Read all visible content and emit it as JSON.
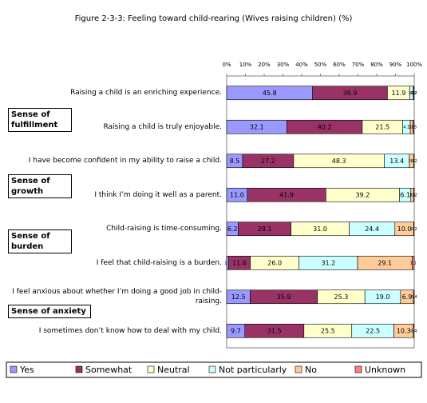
{
  "chart_data": {
    "type": "stacked-bar-horizontal",
    "title": "Figure 2-3-3:  Feeling toward child-rearing (Wives raising children) (%)",
    "categories": [
      "Raising a child is an enriching experience.",
      "Raising a child is truly enjoyable.",
      "I have become confident in my ability to raise a child.",
      "I think I’m doing it well as a parent.",
      "Child-raising is time-consuming.",
      "I feel that child-raising is a burden.",
      "I feel anxious about whether I’m doing a good job in child-raising.",
      "I sometimes don’t know how to deal with my child."
    ],
    "groups": [
      "Sense of fulfillment",
      "Sense of growth",
      "Sense of burden",
      "Sense of anxiety"
    ],
    "series": [
      {
        "name": "Yes",
        "color": "#9999ff",
        "values": [
          45.8,
          32.1,
          8.5,
          11.0,
          6.2,
          1.0,
          12.5,
          9.7
        ],
        "value_labels": [
          "45.8",
          "32.1",
          "8.5",
          "11.0",
          "6.2",
          "1.0",
          "12.5",
          "9.7"
        ]
      },
      {
        "name": "Somewhat",
        "color": "#993366",
        "values": [
          39.9,
          40.2,
          27.2,
          41.9,
          28.1,
          11.6,
          35.9,
          31.5
        ],
        "value_labels": [
          "39.9",
          "40.2",
          "27.2",
          "41.9",
          "28.1",
          "11.6",
          "35.9",
          "31.5"
        ]
      },
      {
        "name": "Neutral",
        "color": "#ffffcc",
        "values": [
          11.9,
          21.5,
          48.3,
          39.2,
          31.0,
          26.0,
          25.3,
          25.5
        ],
        "value_labels": [
          "11.9",
          "21.5",
          "48.3",
          "39.2",
          "31.0",
          "26.0",
          "25.3",
          "25.5"
        ]
      },
      {
        "name": "Not particularly",
        "color": "#ccffff",
        "values": [
          1.9,
          4.1,
          13.4,
          6.1,
          24.4,
          31.2,
          19.0,
          22.5
        ],
        "value_labels": [
          "1.9",
          "4.1",
          "13.4",
          "6.1",
          "24.4",
          "31.2",
          "19.0",
          "22.5"
        ]
      },
      {
        "name": "No",
        "color": "#ffcc99",
        "values": [
          0.2,
          1.5,
          2.4,
          1.6,
          10.0,
          29.1,
          6.9,
          10.3
        ],
        "value_labels": [
          "0.2",
          "1.5",
          "2.4",
          "1.6",
          "10.0",
          "29.1",
          "6.9",
          "10.3"
        ]
      },
      {
        "name": "Unknown",
        "color": "#ff8080",
        "values": [
          0.2,
          0.5,
          0.2,
          0.2,
          0.2,
          1.1,
          0.4,
          0.4
        ],
        "value_labels": [
          "0.2",
          "0.5",
          "0.2",
          "0.2",
          "0.2",
          "1.1",
          "0.4",
          "0.4"
        ]
      }
    ],
    "xlim": [
      0,
      100
    ],
    "xticks": [
      {
        "value": 0,
        "label": "0%"
      },
      {
        "value": 10,
        "label": "10%"
      },
      {
        "value": 20,
        "label": "20%"
      },
      {
        "value": 30,
        "label": "30%"
      },
      {
        "value": 40,
        "label": "40%"
      },
      {
        "value": 50,
        "label": "50%"
      },
      {
        "value": 60,
        "label": "60%"
      },
      {
        "value": 70,
        "label": "70%"
      },
      {
        "value": 80,
        "label": "80%"
      },
      {
        "value": 90,
        "label": "90%"
      },
      {
        "value": 100,
        "label": "100%"
      }
    ],
    "legend": "bottom"
  }
}
